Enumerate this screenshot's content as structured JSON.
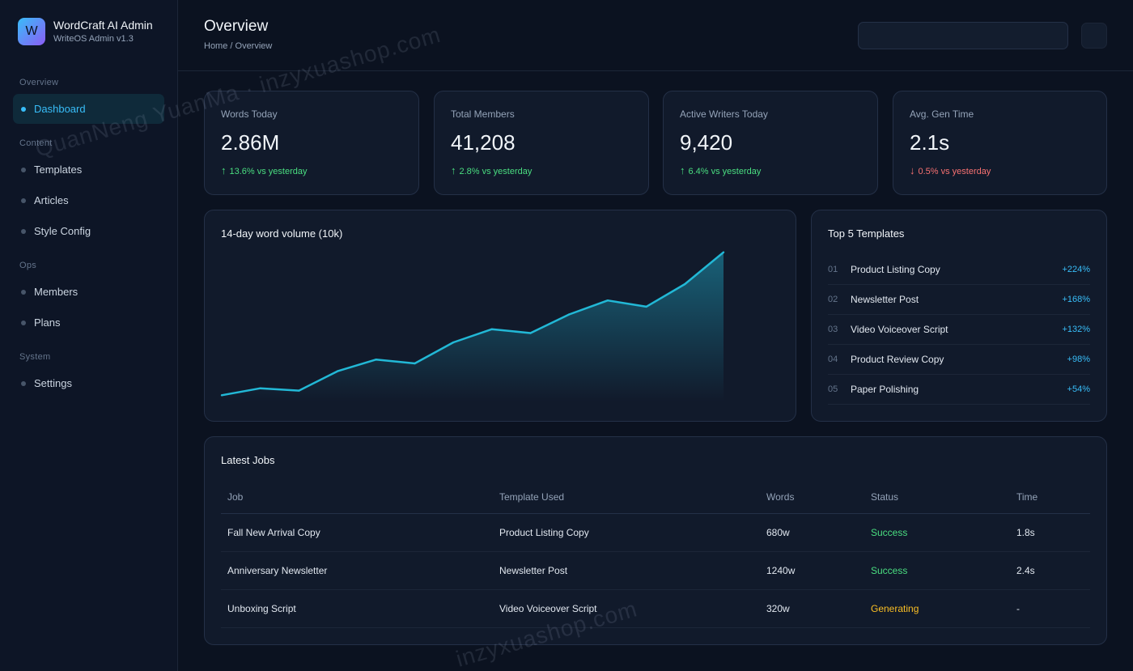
{
  "brand": {
    "logo_letter": "W",
    "title": "WordCraft AI Admin",
    "subtitle": "WriteOS Admin v1.3"
  },
  "sidebar": {
    "sections": [
      {
        "title": "Overview",
        "items": [
          {
            "label": "Dashboard",
            "active": true
          }
        ]
      },
      {
        "title": "Content",
        "items": [
          {
            "label": "Templates"
          },
          {
            "label": "Articles"
          },
          {
            "label": "Style Config"
          }
        ]
      },
      {
        "title": "Ops",
        "items": [
          {
            "label": "Members"
          },
          {
            "label": "Plans"
          }
        ]
      },
      {
        "title": "System",
        "items": [
          {
            "label": "Settings"
          }
        ]
      }
    ]
  },
  "header": {
    "title": "Overview",
    "breadcrumb": "Home / Overview",
    "search_value": ""
  },
  "stats": [
    {
      "label": "Words Today",
      "value": "2.86M",
      "arrow": "↑",
      "delta": "13.6% vs yesterday",
      "direction": "up"
    },
    {
      "label": "Total Members",
      "value": "41,208",
      "arrow": "↑",
      "delta": "2.8% vs yesterday",
      "direction": "up"
    },
    {
      "label": "Active Writers Today",
      "value": "9,420",
      "arrow": "↑",
      "delta": "6.4% vs yesterday",
      "direction": "up"
    },
    {
      "label": "Avg. Gen Time",
      "value": "2.1s",
      "arrow": "↓",
      "delta": "0.5% vs yesterday",
      "direction": "down"
    }
  ],
  "chart": {
    "title": "14-day word volume (10k)"
  },
  "chart_data": {
    "type": "area",
    "title": "14-day word volume (10k)",
    "x": [
      1,
      2,
      3,
      4,
      5,
      6,
      7,
      8,
      9,
      10,
      11,
      12,
      13,
      14
    ],
    "series": [
      {
        "values": [
          8,
          17,
          14,
          39,
          54,
          49,
          76,
          93,
          88,
          112,
          130,
          122,
          151,
          192
        ]
      }
    ],
    "ylim": [
      0,
      200
    ],
    "grid": false,
    "legend": "none",
    "line_color": "#22b8d6"
  },
  "top_templates": {
    "title": "Top 5 Templates",
    "items": [
      {
        "rank": "01",
        "name": "Product Listing Copy",
        "change": "+224%"
      },
      {
        "rank": "02",
        "name": "Newsletter Post",
        "change": "+168%"
      },
      {
        "rank": "03",
        "name": "Video Voiceover Script",
        "change": "+132%"
      },
      {
        "rank": "04",
        "name": "Product Review Copy",
        "change": "+98%"
      },
      {
        "rank": "05",
        "name": "Paper Polishing",
        "change": "+54%"
      }
    ]
  },
  "jobs": {
    "title": "Latest Jobs",
    "columns": [
      "Job",
      "Template Used",
      "Words",
      "Status",
      "Time"
    ],
    "rows": [
      {
        "job": "Fall New Arrival Copy",
        "template": "Product Listing Copy",
        "words": "680w",
        "status": "Success",
        "status_type": "success",
        "time": "1.8s"
      },
      {
        "job": "Anniversary Newsletter",
        "template": "Newsletter Post",
        "words": "1240w",
        "status": "Success",
        "status_type": "success",
        "time": "2.4s"
      },
      {
        "job": "Unboxing Script",
        "template": "Video Voiceover Script",
        "words": "320w",
        "status": "Generating",
        "status_type": "generating",
        "time": "-"
      }
    ]
  },
  "watermarks": {
    "top": "QuanNeng YuanMa · inzyxuashop.com",
    "bottom": "inzyxuashop.com"
  }
}
